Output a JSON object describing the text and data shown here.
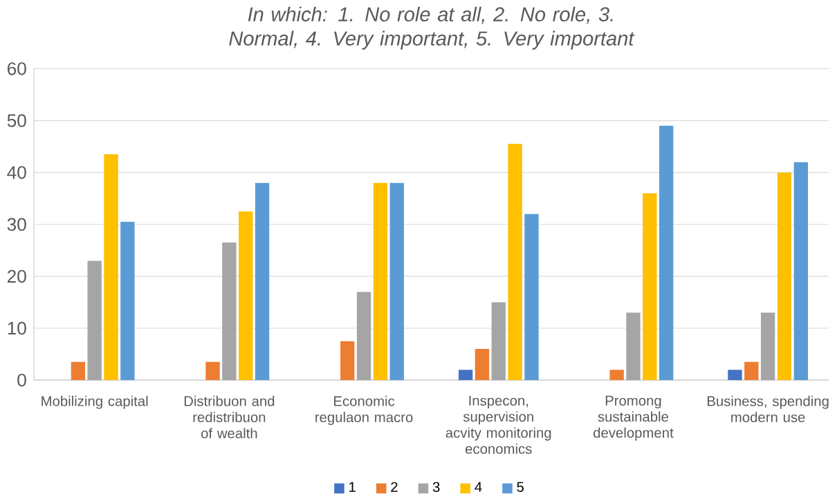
{
  "chart_data": {
    "type": "bar",
    "title": "In which: 1. No role at all, 2. No role, 3. Normal, 4. Very important, 5. Very important",
    "categories": [
      "Mobilizing capital",
      "Distribuon and redistribuon of wealth",
      "Economic regulaon macro",
      "Inspecon, supervision acvity monitoring economics",
      "Promong sustainable development",
      "Business, spending modern use"
    ],
    "series": [
      {
        "name": "1",
        "color": "#4472c4",
        "values": [
          null,
          null,
          null,
          2,
          null,
          2
        ]
      },
      {
        "name": "2",
        "color": "#ed7d31",
        "values": [
          3.5,
          3.5,
          7.5,
          6,
          2,
          3.5
        ]
      },
      {
        "name": "3",
        "color": "#a5a5a5",
        "values": [
          23,
          26.5,
          17,
          15,
          13,
          13
        ]
      },
      {
        "name": "4",
        "color": "#ffc000",
        "values": [
          43.5,
          32.5,
          38,
          45.5,
          36,
          40
        ]
      },
      {
        "name": "5",
        "color": "#5b9bd5",
        "values": [
          30.5,
          38,
          38,
          32,
          49,
          42
        ]
      }
    ],
    "ylim": [
      0,
      60
    ],
    "yticks": [
      0,
      10,
      20,
      30,
      40,
      50,
      60
    ],
    "grid": "y",
    "legend": "bottom"
  }
}
